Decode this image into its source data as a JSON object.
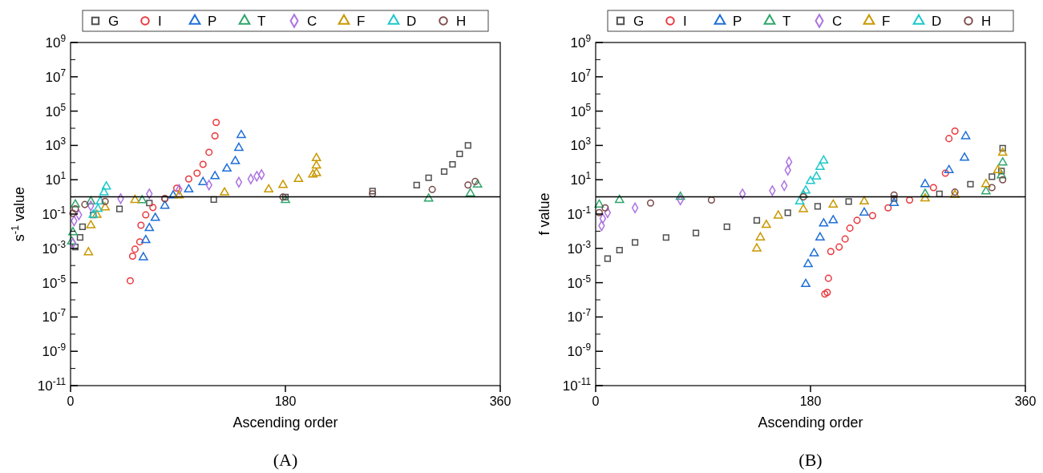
{
  "chart_data": [
    {
      "type": "scatter",
      "xlabel": "Ascending order",
      "ylabel": "s$^{-1}$ value",
      "log": "y",
      "legend": "top",
      "grid": false,
      "xlim": [
        0,
        360
      ],
      "xticks": [
        0,
        180,
        360
      ],
      "ylim": [
        1e-11,
        1000000000.0
      ],
      "yticks": [
        {
          "value": 1e-11,
          "label": "10$^{-11}$"
        },
        {
          "value": 1e-10,
          "label": null
        },
        {
          "value": 1e-09,
          "label": "10$^{-9}$"
        },
        {
          "value": 1e-08,
          "label": null
        },
        {
          "value": 1e-07,
          "label": "10$^{-7}$"
        },
        {
          "value": 1e-06,
          "label": null
        },
        {
          "value": 1e-05,
          "label": "10$^{-5}$"
        },
        {
          "value": 0.0001,
          "label": null
        },
        {
          "value": 0.001,
          "label": "10$^{-3}$"
        },
        {
          "value": 0.01,
          "label": null
        },
        {
          "value": 0.1,
          "label": "10$^{-1}$"
        },
        {
          "value": 1,
          "label": null
        },
        {
          "value": 10,
          "label": "10$^{1}$"
        },
        {
          "value": 100,
          "label": null
        },
        {
          "value": 1000,
          "label": "10$^{3}$"
        },
        {
          "value": 10000.0,
          "label": null
        },
        {
          "value": 100000.0,
          "label": "10$^{5}$"
        },
        {
          "value": 1000000.0,
          "label": null
        },
        {
          "value": 10000000.0,
          "label": "10$^{7}$"
        },
        {
          "value": 100000000.0,
          "label": null
        },
        {
          "value": 1000000000.0,
          "label": "10$^{9}$"
        }
      ],
      "ref_lines": [
        {
          "axis": "y",
          "value": 1,
          "color": "#000000"
        }
      ],
      "annotations": [
        "(A)"
      ],
      "series": [
        {
          "name": "G",
          "color": "#505050",
          "marker": "square",
          "x": [
            4,
            8,
            10,
            19,
            41,
            66,
            120,
            180,
            253,
            290,
            300,
            313,
            320,
            326,
            333
          ],
          "values": [
            0.0012,
            0.0044,
            0.018,
            0.089,
            0.2,
            0.44,
            0.71,
            0.98,
            2.2,
            4.9,
            13,
            30,
            79,
            320,
            1000
          ]
        },
        {
          "name": "I",
          "color": "#e8383d",
          "marker": "circle",
          "x": [
            50,
            52,
            54,
            58,
            59,
            63,
            69,
            79,
            89,
            99,
            106,
            111,
            116,
            121,
            122
          ],
          "values": [
            1.3e-05,
            0.00035,
            0.00089,
            0.0024,
            0.022,
            0.089,
            0.24,
            0.79,
            3.2,
            11,
            24,
            79,
            400,
            3600,
            22000
          ]
        },
        {
          "name": "P",
          "color": "#1f6fd6",
          "marker": "triangle",
          "x": [
            61,
            63,
            66,
            71,
            79,
            86,
            99,
            111,
            121,
            131,
            138,
            141,
            143
          ],
          "values": [
            0.0003,
            0.003,
            0.015,
            0.059,
            0.3,
            1.2,
            2.7,
            7.2,
            16,
            44,
            120,
            720,
            4000
          ]
        },
        {
          "name": "T",
          "color": "#2ea66b",
          "marker": "triangle",
          "x": [
            1,
            2,
            4,
            17,
            60,
            180,
            300,
            335,
            341
          ],
          "values": [
            0.0025,
            0.0087,
            0.36,
            0.54,
            0.63,
            0.66,
            0.79,
            1.6,
            5.2
          ]
        },
        {
          "name": "C",
          "color": "#ad73e0",
          "marker": "diamond",
          "x": [
            2,
            3,
            7,
            17,
            42,
            66,
            91,
            116,
            141,
            151,
            156,
            160
          ],
          "values": [
            0.002,
            0.04,
            0.089,
            0.3,
            0.79,
            1.5,
            2.7,
            4.9,
            7.2,
            11,
            16,
            20
          ]
        },
        {
          "name": "F",
          "color": "#c99800",
          "marker": "triangle",
          "x": [
            15,
            17,
            22,
            29,
            54,
            91,
            129,
            166,
            178,
            191,
            203,
            206,
            206,
            206
          ],
          "values": [
            0.00059,
            0.022,
            0.089,
            0.24,
            0.66,
            1.2,
            1.8,
            2.7,
            4.9,
            11,
            20,
            24,
            66,
            180
          ]
        },
        {
          "name": "D",
          "color": "#1ec8cc",
          "marker": "triangle",
          "x": [
            19,
            23,
            25,
            28,
            30
          ],
          "values": [
            0.089,
            0.2,
            0.54,
            1.8,
            4.0
          ]
        },
        {
          "name": "H",
          "color": "#7a4a4a",
          "marker": "circle",
          "x": [
            2,
            4,
            12,
            29,
            79,
            178,
            253,
            303,
            333,
            339
          ],
          "values": [
            0.11,
            0.2,
            0.36,
            0.54,
            0.79,
            0.98,
            1.5,
            2.7,
            4.9,
            7.9
          ]
        }
      ]
    },
    {
      "type": "scatter",
      "xlabel": "Ascending order",
      "ylabel": "f value",
      "log": "y",
      "legend": "top",
      "grid": false,
      "xlim": [
        0,
        360
      ],
      "xticks": [
        0,
        180,
        360
      ],
      "ylim": [
        1e-11,
        1000000000.0
      ],
      "yticks": [
        {
          "value": 1e-11,
          "label": "10$^{-11}$"
        },
        {
          "value": 1e-10,
          "label": null
        },
        {
          "value": 1e-09,
          "label": "10$^{-9}$"
        },
        {
          "value": 1e-08,
          "label": null
        },
        {
          "value": 1e-07,
          "label": "10$^{-7}$"
        },
        {
          "value": 1e-06,
          "label": null
        },
        {
          "value": 1e-05,
          "label": "10$^{-5}$"
        },
        {
          "value": 0.0001,
          "label": null
        },
        {
          "value": 0.001,
          "label": "10$^{-3}$"
        },
        {
          "value": 0.01,
          "label": null
        },
        {
          "value": 0.1,
          "label": "10$^{-1}$"
        },
        {
          "value": 1,
          "label": null
        },
        {
          "value": 10,
          "label": "10$^{1}$"
        },
        {
          "value": 100,
          "label": null
        },
        {
          "value": 1000,
          "label": "10$^{3}$"
        },
        {
          "value": 10000.0,
          "label": null
        },
        {
          "value": 100000.0,
          "label": "10$^{5}$"
        },
        {
          "value": 1000000.0,
          "label": null
        },
        {
          "value": 10000000.0,
          "label": "10$^{7}$"
        },
        {
          "value": 100000000.0,
          "label": null
        },
        {
          "value": 1000000000.0,
          "label": "10$^{9}$"
        }
      ],
      "ref_lines": [
        {
          "axis": "y",
          "value": 1,
          "color": "#000000"
        }
      ],
      "annotations": [
        "(B)"
      ],
      "series": [
        {
          "name": "G",
          "color": "#505050",
          "marker": "square",
          "x": [
            10,
            20,
            33,
            59,
            84,
            110,
            135,
            161,
            186,
            212,
            250,
            288,
            314,
            332,
            340,
            341
          ],
          "values": [
            0.00025,
            0.00079,
            0.0022,
            0.0043,
            0.0079,
            0.018,
            0.043,
            0.12,
            0.28,
            0.54,
            0.81,
            1.5,
            5.5,
            15,
            32,
            690
          ]
        },
        {
          "name": "I",
          "color": "#e8383d",
          "marker": "circle",
          "x": [
            192,
            194,
            195,
            197,
            204,
            209,
            213,
            219,
            232,
            245,
            263,
            283,
            293,
            296,
            301
          ],
          "values": [
            2.2e-06,
            2.7e-06,
            1.8e-05,
            0.00065,
            0.0012,
            0.0035,
            0.015,
            0.043,
            0.081,
            0.23,
            0.66,
            3.5,
            24,
            2500,
            6900
          ]
        },
        {
          "name": "P",
          "color": "#1f6fd6",
          "marker": "triangle",
          "x": [
            176,
            178,
            183,
            188,
            191,
            199,
            225,
            250,
            276,
            296,
            309,
            310
          ],
          "values": [
            8.3e-06,
            0.00012,
            0.00051,
            0.0043,
            0.028,
            0.043,
            0.12,
            0.44,
            5.5,
            36,
            190,
            3400
          ]
        },
        {
          "name": "T",
          "color": "#2ea66b",
          "marker": "triangle",
          "x": [
            3,
            20,
            71,
            174,
            276,
            327,
            340,
            341
          ],
          "values": [
            0.35,
            0.66,
            1,
            1.3,
            1.5,
            2.1,
            18,
            100
          ]
        },
        {
          "name": "C",
          "color": "#ad73e0",
          "marker": "diamond",
          "x": [
            5,
            6,
            10,
            33,
            71,
            123,
            148,
            158,
            161,
            162
          ],
          "values": [
            0.021,
            0.054,
            0.12,
            0.23,
            0.66,
            1.5,
            2.3,
            4.5,
            36,
            110
          ]
        },
        {
          "name": "F",
          "color": "#c99800",
          "marker": "triangle",
          "x": [
            135,
            138,
            143,
            153,
            174,
            199,
            225,
            276,
            301,
            327,
            337,
            341
          ],
          "values": [
            0.00098,
            0.0043,
            0.023,
            0.081,
            0.19,
            0.35,
            0.54,
            0.81,
            1.3,
            5.5,
            36,
            370
          ]
        },
        {
          "name": "D",
          "color": "#1ec8cc",
          "marker": "triangle",
          "x": [
            171,
            176,
            180,
            185,
            188,
            191
          ],
          "values": [
            0.54,
            2.3,
            8.3,
            15,
            55,
            130
          ]
        },
        {
          "name": "H",
          "color": "#7a4a4a",
          "marker": "circle",
          "x": [
            3,
            8,
            46,
            97,
            174,
            250,
            301,
            332,
            341
          ],
          "values": [
            0.12,
            0.23,
            0.44,
            0.66,
            1,
            1.3,
            1.9,
            3.5,
            10
          ]
        }
      ]
    }
  ]
}
